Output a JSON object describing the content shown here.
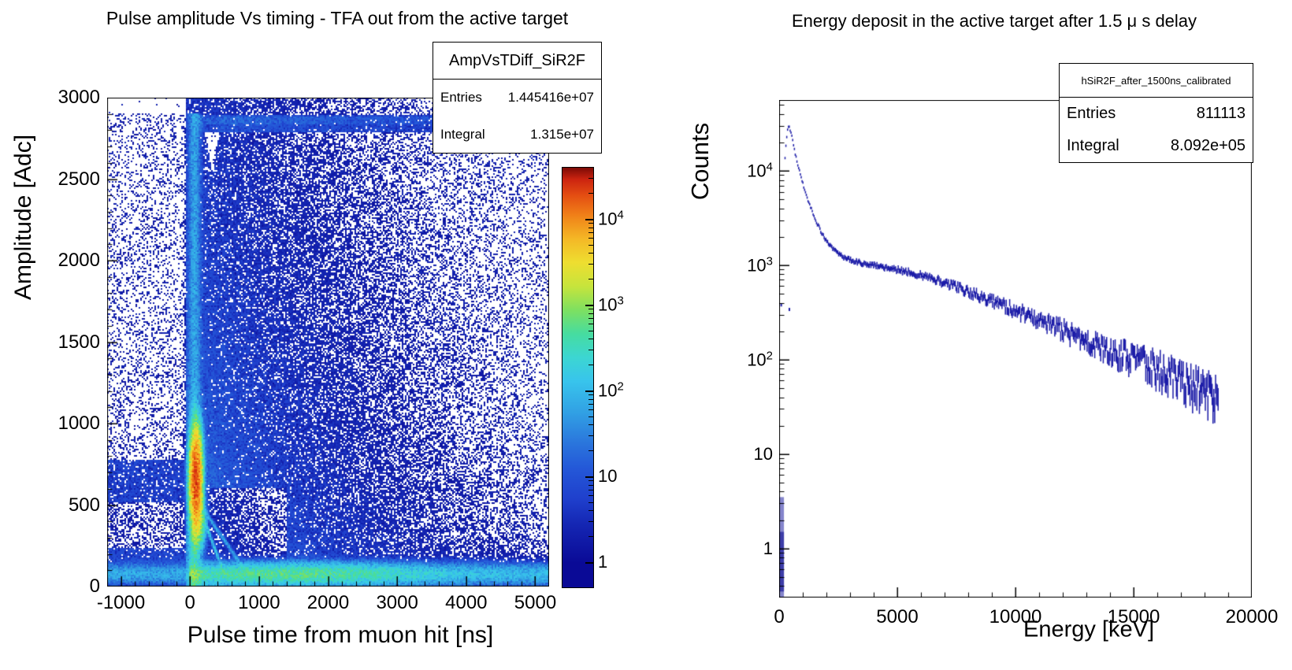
{
  "page": {
    "background": "#ffffff"
  },
  "chart_data": [
    {
      "id": "amp_vs_tdiff",
      "type": "heatmap",
      "title": "Pulse amplitude Vs timing - TFA out from the active target",
      "xlabel": "Pulse time from muon hit [ns]",
      "ylabel": "Amplitude [Adc]",
      "xlim": [
        -1200,
        5200
      ],
      "ylim": [
        0,
        3000
      ],
      "xticks": [
        -1000,
        0,
        1000,
        2000,
        3000,
        4000,
        5000
      ],
      "yticks": [
        0,
        500,
        1000,
        1500,
        2000,
        2500,
        3000
      ],
      "x_minor_step": 200,
      "y_minor_step": 100,
      "zscale": "log",
      "zmax_exp": 4.62,
      "grid": false,
      "colorbar_ticks": [
        {
          "v": 1,
          "t": "1"
        },
        {
          "v": 10,
          "t": "10"
        },
        {
          "v": 100,
          "t": "10",
          "sup": "2"
        },
        {
          "v": 1000,
          "t": "10",
          "sup": "3"
        },
        {
          "v": 10000,
          "t": "10",
          "sup": "4"
        }
      ],
      "stats": {
        "name": "AmpVsTDiff_SiR2F",
        "entries_label": "Entries",
        "entries": "1.445416e+07",
        "integral_label": "Integral",
        "integral": "1.315e+07"
      },
      "palette": [
        [
          0.0,
          "#0a0a96"
        ],
        [
          0.1,
          "#1527b4"
        ],
        [
          0.16,
          "#1f3fcc"
        ],
        [
          0.24,
          "#2458d8"
        ],
        [
          0.3,
          "#2a74dc"
        ],
        [
          0.38,
          "#31a0e4"
        ],
        [
          0.46,
          "#38c4ec"
        ],
        [
          0.52,
          "#3cd6d2"
        ],
        [
          0.58,
          "#46dca0"
        ],
        [
          0.64,
          "#7ee060"
        ],
        [
          0.7,
          "#c6e43c"
        ],
        [
          0.76,
          "#eede30"
        ],
        [
          0.82,
          "#f4b826"
        ],
        [
          0.88,
          "#f08018"
        ],
        [
          0.93,
          "#e44e12"
        ],
        [
          0.97,
          "#cc2410"
        ],
        [
          1.0,
          "#7c0a06"
        ]
      ],
      "features": {
        "cloud": [
          [
            26,
            650,
            800
          ],
          [
            7,
            1500,
            2200
          ],
          [
            1.6,
            3200,
            5000
          ]
        ],
        "cloud_floor": [
          0.55,
          5200
        ],
        "low_haze": [
          5,
          260,
          2800
        ],
        "neg_bands": [
          {
            "a": [
              40,
              240
            ],
            "d": 5.5
          },
          {
            "a": [
              240,
              520
            ],
            "d": 0.85
          },
          {
            "a": [
              520,
              780
            ],
            "d": 5.0
          },
          {
            "a": [
              780,
              2900
            ],
            "d": 0.45
          }
        ],
        "neg_backdrop": [
          0.35,
          1800
        ],
        "dead_block": {
          "t": [
            150,
            1400
          ],
          "a": [
            25,
            600
          ],
          "factor": 0.18
        },
        "notch": {
          "t": [
            180,
            470
          ],
          "a_top": 2890,
          "depth": 360,
          "factor": 0.05
        },
        "sat_band": {
          "a": [
            2790,
            2890
          ],
          "d": 8,
          "core": [
            2835,
            2885
          ],
          "d_core": 7,
          "t_start": 30,
          "t_scale": 5500
        },
        "column": {
          "t0": 65,
          "sigma": 46,
          "base": 55,
          "low_boost": 280,
          "low_scale": 340
        },
        "hotspot": {
          "amp": 22000,
          "t0": 85,
          "st": 40,
          "a0": 655,
          "sa": 140
        },
        "hotspot2": {
          "amp": 1200,
          "t0": 115,
          "st": 50,
          "a0": 390,
          "sa": 75
        },
        "streaks": [
          {
            "t": [
              100,
              520
            ],
            "a0": 530,
            "slope": -1.15,
            "w": 13,
            "amp": 150
          },
          {
            "t": [
              100,
              820
            ],
            "a0": 530,
            "slope": -0.62,
            "w": 11,
            "amp": 55
          }
        ],
        "bottom_band": {
          "a0": 75,
          "sigma": 34,
          "base": 100,
          "bump": 430,
          "bump_t0": 1500,
          "bump_sigma": 1100,
          "spike": 430,
          "spike_t0": 55,
          "spike_sigma": 100,
          "neg": 65
        }
      }
    },
    {
      "id": "energy_after_delay",
      "type": "line",
      "title": "Energy deposit in the active target after 1.5 μ s delay",
      "xlabel": "Energy [keV]",
      "ylabel": "Counts",
      "xlim": [
        0,
        20000
      ],
      "yscale": "log",
      "ylog_exp_range": [
        -0.52,
        4.75
      ],
      "xticks": [
        0,
        5000,
        10000,
        15000,
        20000
      ],
      "x_minor_step": 1000,
      "yticks_log": [
        {
          "v": 1,
          "t": "1"
        },
        {
          "v": 10,
          "t": "10"
        },
        {
          "v": 100,
          "t": "10",
          "sup": "2"
        },
        {
          "v": 1000,
          "t": "10",
          "sup": "3"
        },
        {
          "v": 10000,
          "t": "10",
          "sup": "4"
        }
      ],
      "stats": {
        "name": "hSiR2F_after_1500ns_calibrated",
        "entries_label": "Entries",
        "entries": "811113",
        "integral_label": "Integral",
        "integral": "8.092e+05"
      },
      "marker_color": "#1c1ca8",
      "spike": {
        "x_range": [
          0,
          170
        ],
        "top": 3.5,
        "dark_range": [
          1.5,
          0.35
        ],
        "color_light": "#8585cc",
        "color_dark": "#3d3da8"
      },
      "outliers": [
        [
          90,
          380
        ],
        [
          433,
          340
        ]
      ],
      "points": [
        [
          250,
          14000
        ],
        [
          300,
          21000
        ],
        [
          350,
          26500
        ],
        [
          400,
          30000
        ],
        [
          450,
          28500
        ],
        [
          500,
          25500
        ],
        [
          550,
          22000
        ],
        [
          600,
          19000
        ],
        [
          700,
          14500
        ],
        [
          800,
          11500
        ],
        [
          900,
          9200
        ],
        [
          1000,
          7400
        ],
        [
          1100,
          6100
        ],
        [
          1200,
          5100
        ],
        [
          1300,
          4300
        ],
        [
          1400,
          3700
        ],
        [
          1600,
          2800
        ],
        [
          1800,
          2200
        ],
        [
          2000,
          1800
        ],
        [
          2200,
          1550
        ],
        [
          2400,
          1400
        ],
        [
          2600,
          1280
        ],
        [
          2800,
          1200
        ],
        [
          3000,
          1140
        ],
        [
          3200,
          1100
        ],
        [
          3500,
          1050
        ],
        [
          4000,
          1000
        ],
        [
          4500,
          950
        ],
        [
          5000,
          900
        ],
        [
          5500,
          845
        ],
        [
          6000,
          785
        ],
        [
          6500,
          725
        ],
        [
          7000,
          655
        ],
        [
          7500,
          585
        ],
        [
          8000,
          525
        ],
        [
          8500,
          470
        ],
        [
          9000,
          420
        ],
        [
          9500,
          372
        ],
        [
          10000,
          330
        ],
        [
          10500,
          295
        ],
        [
          11000,
          262
        ],
        [
          11500,
          232
        ],
        [
          12000,
          206
        ],
        [
          12500,
          182
        ],
        [
          13000,
          161
        ],
        [
          13500,
          142
        ],
        [
          14000,
          126
        ],
        [
          14500,
          112
        ],
        [
          15000,
          100
        ],
        [
          15500,
          89
        ],
        [
          16000,
          79
        ],
        [
          16500,
          69
        ],
        [
          17000,
          61
        ],
        [
          17500,
          53
        ],
        [
          18000,
          46
        ],
        [
          18300,
          41
        ],
        [
          18600,
          34
        ]
      ]
    }
  ]
}
